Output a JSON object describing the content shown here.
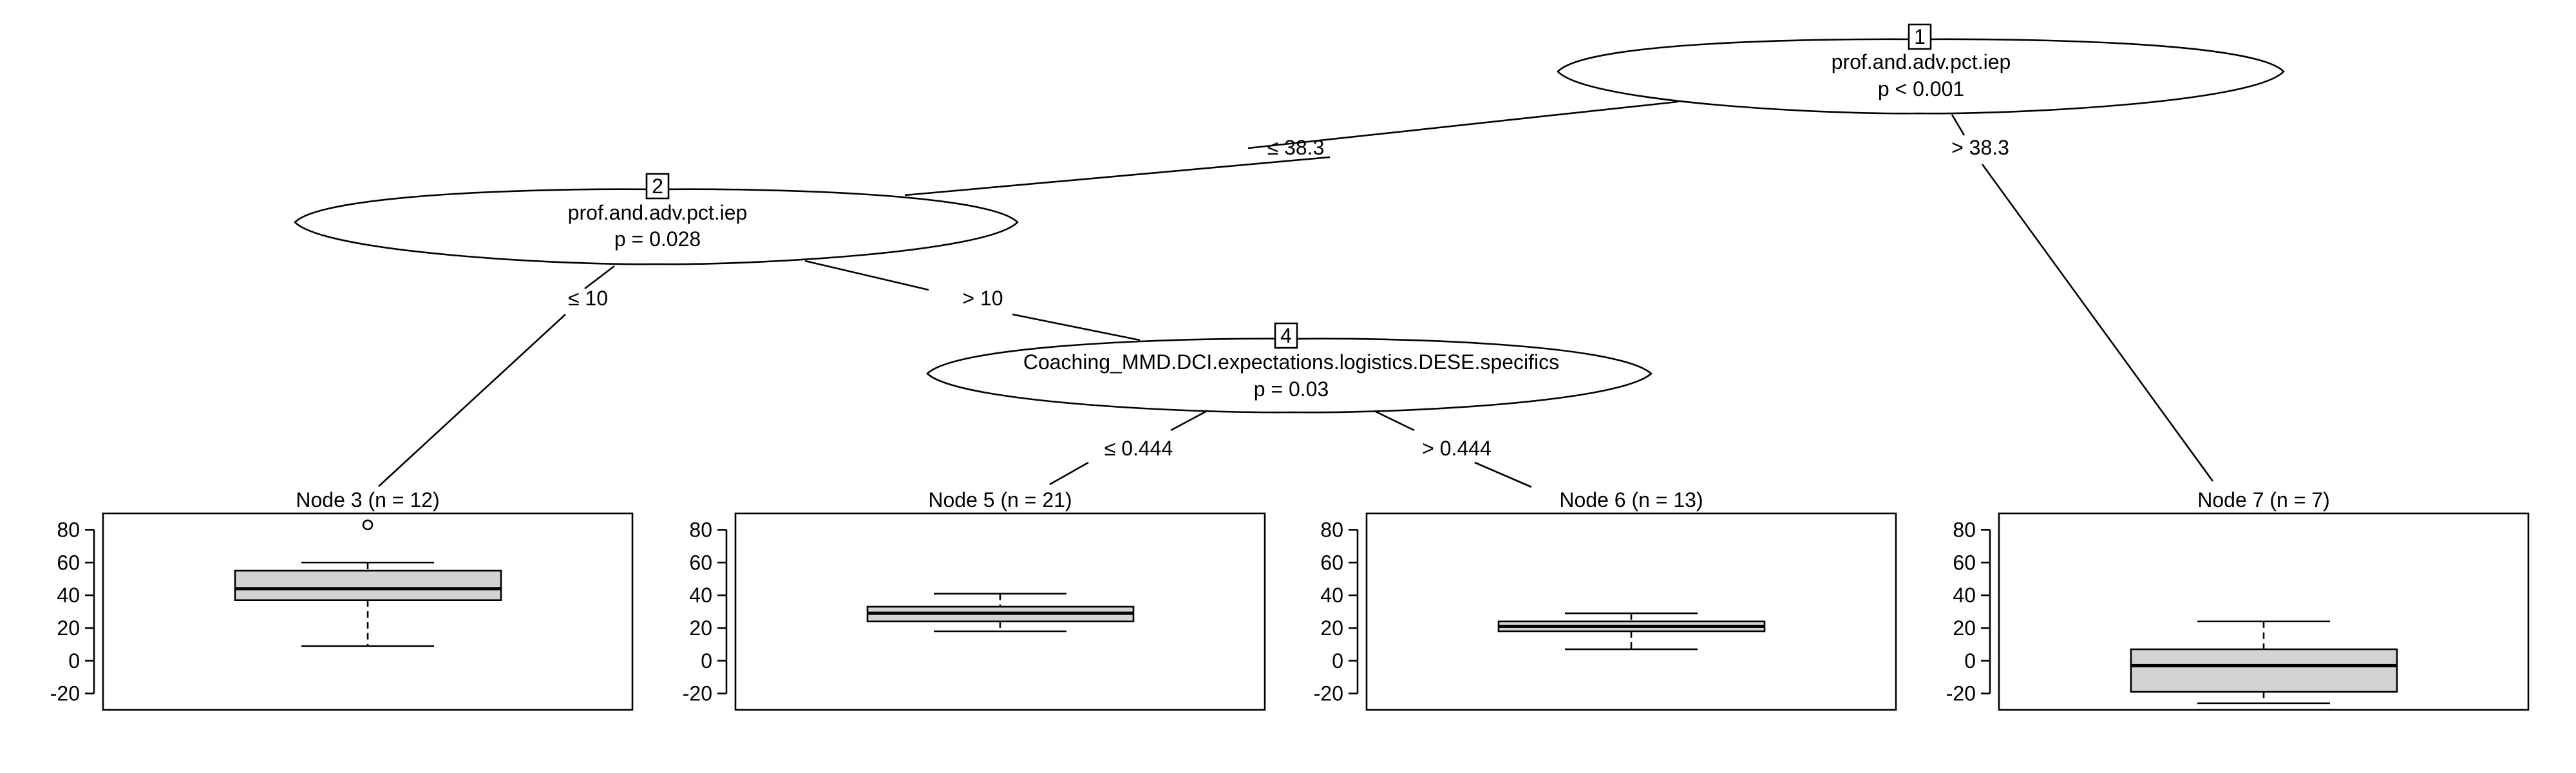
{
  "inner_nodes": [
    {
      "id": "1",
      "variable": "prof.and.adv.pct.iep",
      "pvalue": "p < 0.001"
    },
    {
      "id": "2",
      "variable": "prof.and.adv.pct.iep",
      "pvalue": "p = 0.028"
    },
    {
      "id": "4",
      "variable": "Coaching_MMD.DCI.expectations.logistics.DESE.specifics",
      "pvalue": "p = 0.03"
    }
  ],
  "edges": [
    {
      "from": "1",
      "to": "2",
      "label": "≤ 38.3"
    },
    {
      "from": "1",
      "to": "7",
      "label": "> 38.3"
    },
    {
      "from": "2",
      "to": "3",
      "label": "≤ 10"
    },
    {
      "from": "2",
      "to": "4",
      "label": "> 10"
    },
    {
      "from": "4",
      "to": "5",
      "label": "≤ 0.444"
    },
    {
      "from": "4",
      "to": "6",
      "label": "> 0.444"
    }
  ],
  "y_ticks": [
    "80",
    "60",
    "40",
    "20",
    "0",
    "-20"
  ],
  "chart_data": {
    "type": "boxplot",
    "ylim": [
      -30,
      90
    ],
    "y_ticks": [
      80,
      60,
      40,
      20,
      0,
      -20
    ],
    "terminal_nodes": [
      {
        "id": "3",
        "title": "Node 3 (n = 12)",
        "n": 12,
        "whisker_low": 9,
        "q1": 37,
        "median": 44,
        "q3": 55,
        "whisker_high": 60,
        "outliers": [
          83
        ]
      },
      {
        "id": "5",
        "title": "Node 5 (n = 21)",
        "n": 21,
        "whisker_low": 18,
        "q1": 24,
        "median": 29,
        "q3": 33,
        "whisker_high": 41,
        "outliers": []
      },
      {
        "id": "6",
        "title": "Node 6 (n = 13)",
        "n": 13,
        "whisker_low": 7,
        "q1": 18,
        "median": 21,
        "q3": 24,
        "whisker_high": 29,
        "outliers": []
      },
      {
        "id": "7",
        "title": "Node 7 (n = 7)",
        "n": 7,
        "whisker_low": -26,
        "q1": -19,
        "median": -3,
        "q3": 7,
        "whisker_high": 24,
        "outliers": []
      }
    ]
  }
}
